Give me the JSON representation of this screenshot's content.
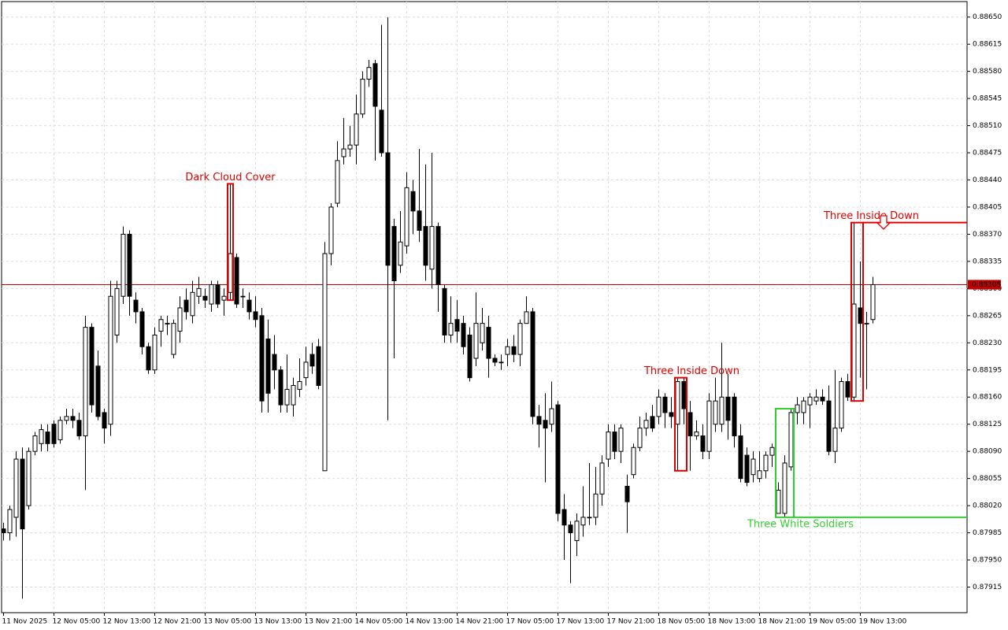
{
  "chart_data": {
    "type": "candlestick",
    "categories": [
      "11 Nov 2025",
      null,
      null,
      null,
      null,
      null,
      null,
      null,
      "12 Nov 05:00",
      null,
      null,
      null,
      null,
      null,
      null,
      null,
      "12 Nov 13:00",
      null,
      null,
      null,
      null,
      null,
      null,
      null,
      "12 Nov 21:00",
      null,
      null,
      null,
      null,
      null,
      null,
      null,
      "13 Nov 05:00",
      null,
      null,
      null,
      null,
      null,
      null,
      null,
      "13 Nov 13:00",
      null,
      null,
      null,
      null,
      null,
      null,
      null,
      "13 Nov 21:00",
      null,
      null,
      null,
      null,
      null,
      null,
      null,
      "14 Nov 05:00",
      null,
      null,
      null,
      null,
      null,
      null,
      null,
      "14 Nov 13:00",
      null,
      null,
      null,
      null,
      null,
      null,
      null,
      "14 Nov 21:00",
      null,
      null,
      null,
      null,
      null,
      null,
      null,
      "17 Nov 05:00",
      null,
      null,
      null,
      null,
      null,
      null,
      null,
      "17 Nov 13:00",
      null,
      null,
      null,
      null,
      null,
      null,
      null,
      "17 Nov 21:00",
      null,
      null,
      null,
      null,
      null,
      null,
      null,
      "18 Nov 05:00",
      null,
      null,
      null,
      null,
      null,
      null,
      null,
      "18 Nov 13:00",
      null,
      null,
      null,
      null,
      null,
      null,
      null,
      "18 Nov 21:00",
      null,
      null,
      null,
      null,
      null,
      null,
      null,
      "19 Nov 05:00",
      null,
      null,
      null,
      null,
      null,
      null,
      null,
      "19 Nov 13:00",
      null,
      null
    ],
    "open": [
      0.8799,
      0.87985,
      0.88005,
      0.8808,
      0.8802,
      0.8809,
      0.881,
      0.88115,
      0.88125,
      0.88105,
      0.8813,
      0.88135,
      0.8813,
      0.8811,
      0.8825,
      0.882,
      0.8814,
      0.88125,
      0.8824,
      0.8829,
      0.8837,
      0.88285,
      0.8827,
      0.88225,
      0.88195,
      0.88245,
      0.88255,
      0.88215,
      0.88245,
      0.88285,
      0.88265,
      0.8829,
      0.8829,
      0.8828,
      0.88305,
      0.88285,
      0.88295,
      0.8834,
      0.8829,
      0.88285,
      0.8827,
      0.88265,
      0.88235,
      0.88215,
      0.88195,
      0.8815,
      0.8815,
      0.8817,
      0.88185,
      0.88215,
      0.88225,
      0.88065,
      0.88345,
      0.8841,
      0.8847,
      0.8848,
      0.88485,
      0.88525,
      0.8857,
      0.8859,
      0.8853,
      0.88475,
      0.8838,
      0.8833,
      0.88355,
      0.88425,
      0.884,
      0.8838,
      0.88325,
      0.8838,
      0.883,
      0.8824,
      0.8826,
      0.88255,
      0.8824,
      0.8821,
      0.8823,
      0.8825,
      0.8821,
      0.88205,
      0.88215,
      0.88225,
      0.88215,
      0.88255,
      0.8827,
      0.88135,
      0.8813,
      0.88125,
      0.8815,
      0.88015,
      0.87995,
      0.87975,
      0.87995,
      0.88005,
      0.88005,
      0.88035,
      0.8808,
      0.88115,
      0.8809,
      0.88045,
      0.8806,
      0.88095,
      0.8812,
      0.88135,
      0.88135,
      0.8816,
      0.8814,
      0.88125,
      0.8818,
      0.8814,
      0.8811,
      0.8811,
      0.8809,
      0.88125,
      0.88125,
      0.8816,
      0.8816,
      0.8811,
      0.88085,
      0.8806,
      0.88055,
      0.88065,
      0.88085,
      0.8801,
      0.8801,
      0.8807,
      0.8814,
      0.8814,
      0.8815,
      0.88155,
      0.8816,
      0.88155,
      0.8809,
      0.8812,
      0.8818,
      0.8816,
      0.88275,
      0.88255,
      0.8826
    ],
    "high": [
      0.87998,
      0.8802,
      0.8809,
      0.88095,
      0.88095,
      0.88115,
      0.88125,
      0.88125,
      0.8813,
      0.88135,
      0.88145,
      0.88145,
      0.8814,
      0.88265,
      0.88255,
      0.8822,
      0.88145,
      0.8831,
      0.8831,
      0.8838,
      0.88375,
      0.88295,
      0.88275,
      0.8823,
      0.8825,
      0.88265,
      0.88265,
      0.8826,
      0.8829,
      0.883,
      0.8831,
      0.88315,
      0.883,
      0.8831,
      0.8831,
      0.883,
      0.88435,
      0.88345,
      0.883,
      0.88295,
      0.8829,
      0.88275,
      0.8826,
      0.8824,
      0.882,
      0.88215,
      0.88185,
      0.8821,
      0.88225,
      0.8823,
      0.88235,
      0.8836,
      0.8841,
      0.8849,
      0.8852,
      0.8851,
      0.8855,
      0.8858,
      0.88595,
      0.88595,
      0.8864,
      0.8865,
      0.8839,
      0.884,
      0.8845,
      0.8844,
      0.8848,
      0.8846,
      0.88475,
      0.88385,
      0.88305,
      0.8829,
      0.88285,
      0.88265,
      0.8825,
      0.88295,
      0.88275,
      0.88265,
      0.88215,
      0.88215,
      0.88235,
      0.8824,
      0.8826,
      0.8829,
      0.88275,
      0.8815,
      0.88165,
      0.8818,
      0.88155,
      0.88035,
      0.88,
      0.8801,
      0.88045,
      0.88075,
      0.8807,
      0.88085,
      0.88125,
      0.88125,
      0.88125,
      0.8806,
      0.881,
      0.88135,
      0.8814,
      0.8815,
      0.8817,
      0.88165,
      0.8816,
      0.88185,
      0.88185,
      0.88155,
      0.8813,
      0.88125,
      0.88165,
      0.88185,
      0.8823,
      0.8819,
      0.88165,
      0.88125,
      0.88095,
      0.8809,
      0.8809,
      0.8809,
      0.881,
      0.8805,
      0.88085,
      0.88145,
      0.8816,
      0.8816,
      0.88165,
      0.8817,
      0.8817,
      0.88175,
      0.88195,
      0.88185,
      0.8819,
      0.88385,
      0.88335,
      0.8827,
      0.88315
    ],
    "low": [
      0.87975,
      0.87975,
      0.8798,
      0.879,
      0.88015,
      0.88085,
      0.8809,
      0.8809,
      0.88095,
      0.881,
      0.88125,
      0.8812,
      0.88105,
      0.8804,
      0.8814,
      0.8813,
      0.881,
      0.8811,
      0.8823,
      0.8828,
      0.88265,
      0.88255,
      0.88215,
      0.8819,
      0.8819,
      0.88225,
      0.8824,
      0.8821,
      0.8823,
      0.8826,
      0.88255,
      0.8828,
      0.88275,
      0.8827,
      0.88275,
      0.88265,
      0.88285,
      0.88275,
      0.88275,
      0.8826,
      0.8825,
      0.8814,
      0.8814,
      0.8817,
      0.8814,
      0.8814,
      0.88135,
      0.8816,
      0.88175,
      0.8819,
      0.8817,
      0.88065,
      0.8833,
      0.88405,
      0.8846,
      0.8847,
      0.8846,
      0.8852,
      0.8856,
      0.88465,
      0.8847,
      0.8813,
      0.8821,
      0.8832,
      0.88345,
      0.8837,
      0.8836,
      0.8831,
      0.883,
      0.8827,
      0.8823,
      0.8823,
      0.8823,
      0.88215,
      0.8818,
      0.882,
      0.8822,
      0.88185,
      0.882,
      0.88195,
      0.882,
      0.88205,
      0.882,
      0.88255,
      0.88125,
      0.88095,
      0.8805,
      0.88115,
      0.88,
      0.8795,
      0.8792,
      0.87955,
      0.8798,
      0.87995,
      0.87995,
      0.8802,
      0.8807,
      0.8808,
      0.88075,
      0.87985,
      0.88055,
      0.8809,
      0.8811,
      0.88115,
      0.88125,
      0.8812,
      0.8812,
      0.88065,
      0.88125,
      0.88065,
      0.88105,
      0.8808,
      0.8808,
      0.88115,
      0.88115,
      0.88105,
      0.88095,
      0.8805,
      0.88045,
      0.8805,
      0.8805,
      0.88055,
      0.8807,
      0.8801,
      0.88005,
      0.88065,
      0.88125,
      0.88125,
      0.8812,
      0.8815,
      0.8815,
      0.88085,
      0.88075,
      0.88115,
      0.88155,
      0.88155,
      0.88185,
      0.8817,
      0.88255
    ],
    "close": [
      0.87985,
      0.88015,
      0.8808,
      0.8799,
      0.8809,
      0.8811,
      0.88118,
      0.881,
      0.881,
      0.8813,
      0.88135,
      0.8813,
      0.8811,
      0.8825,
      0.8815,
      0.88135,
      0.8812,
      0.8829,
      0.883,
      0.8837,
      0.8829,
      0.8827,
      0.88225,
      0.88195,
      0.8824,
      0.8826,
      0.88255,
      0.88255,
      0.88275,
      0.8827,
      0.88295,
      0.883,
      0.88285,
      0.88305,
      0.8828,
      0.8829,
      0.88345,
      0.8828,
      0.8829,
      0.8827,
      0.8826,
      0.88155,
      0.88165,
      0.88195,
      0.8815,
      0.8817,
      0.88175,
      0.8818,
      0.88205,
      0.882,
      0.88175,
      0.88345,
      0.88405,
      0.88465,
      0.8848,
      0.88485,
      0.88525,
      0.8857,
      0.88585,
      0.88535,
      0.88475,
      0.8833,
      0.8831,
      0.8836,
      0.8843,
      0.884,
      0.88375,
      0.8833,
      0.8838,
      0.88305,
      0.8824,
      0.88255,
      0.88245,
      0.88225,
      0.88185,
      0.88255,
      0.88255,
      0.8821,
      0.88205,
      0.88205,
      0.88225,
      0.88215,
      0.88255,
      0.8827,
      0.88135,
      0.88125,
      0.8812,
      0.88145,
      0.8801,
      0.87995,
      0.87985,
      0.88,
      0.88005,
      0.88005,
      0.88035,
      0.88075,
      0.88115,
      0.8809,
      0.8812,
      0.88025,
      0.88095,
      0.8812,
      0.8813,
      0.8812,
      0.8816,
      0.8814,
      0.88135,
      0.8818,
      0.88145,
      0.8811,
      0.88115,
      0.8809,
      0.88155,
      0.88155,
      0.8816,
      0.8813,
      0.8811,
      0.88055,
      0.8805,
      0.8808,
      0.88065,
      0.88085,
      0.88095,
      0.8804,
      0.88075,
      0.8814,
      0.8815,
      0.88155,
      0.8816,
      0.8816,
      0.88155,
      0.8809,
      0.8812,
      0.8818,
      0.8816,
      0.8828,
      0.88255,
      0.88255,
      0.88305
    ],
    "ylim": [
      0.87882,
      0.8867
    ],
    "yticks": [
      {
        "value": 0.87915,
        "label": "0.87915"
      },
      {
        "value": 0.8795,
        "label": "0.87950"
      },
      {
        "value": 0.87985,
        "label": "0.87985"
      },
      {
        "value": 0.8802,
        "label": "0.88020"
      },
      {
        "value": 0.88055,
        "label": "0.88055"
      },
      {
        "value": 0.8809,
        "label": "0.88090"
      },
      {
        "value": 0.88125,
        "label": "0.88125"
      },
      {
        "value": 0.8816,
        "label": "0.88160"
      },
      {
        "value": 0.88195,
        "label": "0.88195"
      },
      {
        "value": 0.8823,
        "label": "0.88230"
      },
      {
        "value": 0.88265,
        "label": "0.88265"
      },
      {
        "value": 0.883,
        "label": "0.88300"
      },
      {
        "value": 0.88335,
        "label": "0.88335"
      },
      {
        "value": 0.8837,
        "label": "0.88370"
      },
      {
        "value": 0.88405,
        "label": "0.88405"
      },
      {
        "value": 0.8844,
        "label": "0.88440"
      },
      {
        "value": 0.88475,
        "label": "0.88475"
      },
      {
        "value": 0.8851,
        "label": "0.88510"
      },
      {
        "value": 0.88545,
        "label": "0.88545"
      },
      {
        "value": 0.8858,
        "label": "0.88580"
      },
      {
        "value": 0.88615,
        "label": "0.88615"
      },
      {
        "value": 0.8865,
        "label": "0.88650"
      }
    ],
    "grid": true,
    "bull_color": "#ffffff",
    "bear_color": "#000000",
    "last_price": 0.88305,
    "last_price_color": "#c00000",
    "patterns": [
      {
        "label": "Dark Cloud Cover",
        "color": "#e00000"
      },
      {
        "label": "Three Inside Down",
        "color": "#e00000"
      },
      {
        "label": "Three White Soldiers",
        "color": "#33cc33"
      },
      {
        "label": "Three Inside Down",
        "color": "#e00000"
      }
    ]
  }
}
